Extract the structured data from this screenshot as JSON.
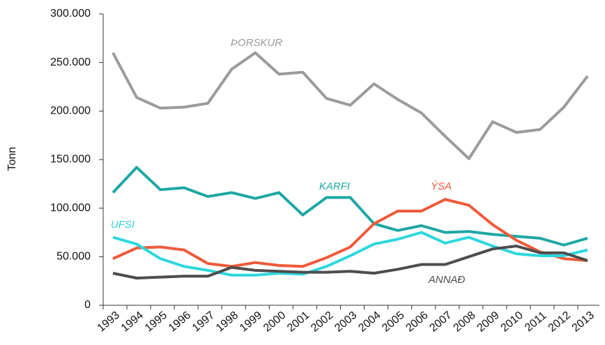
{
  "chart_data": {
    "type": "line",
    "y_label": "Tonn",
    "categories": [
      "1993",
      "1994",
      "1995",
      "1996",
      "1997",
      "1998",
      "1999",
      "2000",
      "2001",
      "2002",
      "2003",
      "2004",
      "2005",
      "2006",
      "2007",
      "2008",
      "2009",
      "2010",
      "2011",
      "2012",
      "2013"
    ],
    "series": [
      {
        "name": "ÞORSKUR",
        "color": "#9b9b9b",
        "values": [
          260000,
          214000,
          203000,
          204000,
          208000,
          243000,
          260000,
          238000,
          240000,
          213000,
          206000,
          228000,
          212000,
          198000,
          174000,
          151000,
          189000,
          178000,
          181000,
          204000,
          236000
        ]
      },
      {
        "name": "KARFI",
        "color": "#1ea7a4",
        "values": [
          116000,
          142000,
          119000,
          121000,
          112000,
          116000,
          110000,
          116000,
          93000,
          111000,
          111000,
          84000,
          77000,
          82000,
          75000,
          76000,
          73000,
          71000,
          69000,
          62000,
          69000
        ]
      },
      {
        "name": "ÝSA",
        "color": "#ef5a3a",
        "values": [
          48000,
          59000,
          60000,
          57000,
          43000,
          40000,
          44000,
          41000,
          40000,
          49000,
          60000,
          84000,
          97000,
          97000,
          109000,
          103000,
          83000,
          67000,
          55000,
          48000,
          46000
        ]
      },
      {
        "name": "UFSI",
        "color": "#2dd7de",
        "values": [
          70000,
          63000,
          48000,
          40000,
          36000,
          31000,
          31000,
          33000,
          32000,
          40000,
          51000,
          63000,
          68000,
          75000,
          64000,
          70000,
          61000,
          53000,
          51000,
          51000,
          57000
        ]
      },
      {
        "name": "ANNAÐ",
        "color": "#4d4d4d",
        "values": [
          33000,
          28000,
          29000,
          30000,
          30000,
          39000,
          36000,
          35000,
          34000,
          34000,
          35000,
          33000,
          37000,
          42000,
          42000,
          50000,
          58000,
          61000,
          54000,
          54000,
          46000
        ]
      }
    ],
    "ylim": [
      0,
      300000
    ],
    "yticks": [
      0,
      {
        "value": 50000,
        "label": "50.000"
      },
      {
        "value": 100000,
        "label": "100.000"
      },
      {
        "value": 150000,
        "label": "150.000"
      },
      {
        "value": 200000,
        "label": "200.000"
      },
      {
        "value": 250000,
        "label": "250.000"
      },
      {
        "value": 300000,
        "label": "300.000"
      }
    ],
    "grid": false
  }
}
